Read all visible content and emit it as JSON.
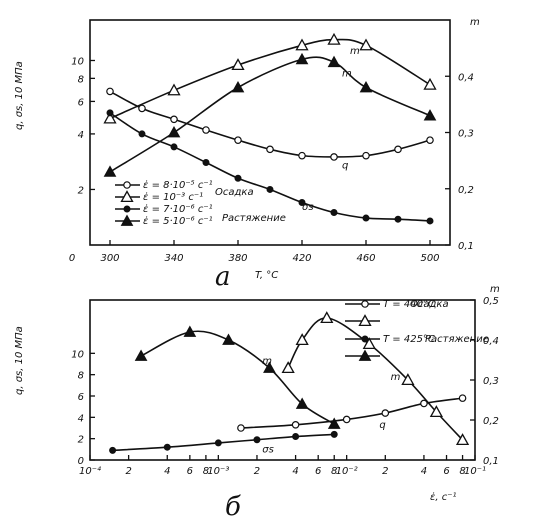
{
  "chart_data": [
    {
      "type": "line",
      "panel_label": "а",
      "xlabel": "T, °C",
      "ylabel": "q, σs, 10 МПа",
      "y2label": "m",
      "xlim": [
        300,
        500
      ],
      "ylim": [
        1,
        15
      ],
      "y_scale": "log",
      "y2lim": [
        0.1,
        0.5
      ],
      "x_ticks": [
        "0",
        "300",
        "340",
        "380",
        "420",
        "460",
        "500"
      ],
      "y_ticks": [
        "2",
        "4",
        "6",
        "8",
        "10"
      ],
      "y2_ticks": [
        "0,1",
        "0,2",
        "0,3",
        "0,4"
      ],
      "legend": [
        "ε̇ = 8·10⁻⁵ с⁻¹",
        "ε̇ = 10⁻³ с⁻¹",
        "ε̇ = 7·10⁻⁶ с⁻¹",
        "ε̇ = 5·10⁻⁶ с⁻¹"
      ],
      "legend_notes": [
        "Осадка",
        "Растяжение"
      ],
      "curve_labels": [
        "m",
        "m",
        "q",
        "σs"
      ],
      "series": [
        {
          "name": "ε̇ = 8·10⁻⁵ с⁻¹",
          "marker": "open-circle",
          "axis": "left",
          "x": [
            300,
            320,
            340,
            360,
            380,
            400,
            420,
            440,
            460,
            480,
            500
          ],
          "y": [
            6.8,
            5.5,
            4.8,
            4.2,
            3.7,
            3.3,
            3.05,
            3.0,
            3.05,
            3.3,
            3.7
          ]
        },
        {
          "name": "ε̇ = 10⁻³ с⁻¹",
          "marker": "open-triangle",
          "axis": "right",
          "x": [
            300,
            340,
            380,
            420,
            440,
            460,
            500
          ],
          "y": [
            0.325,
            0.375,
            0.42,
            0.455,
            0.465,
            0.455,
            0.385
          ]
        },
        {
          "name": "ε̇ = 7·10⁻⁶ с⁻¹",
          "marker": "filled-circle",
          "axis": "left",
          "x": [
            300,
            320,
            340,
            360,
            380,
            400,
            420,
            440,
            460,
            480,
            500
          ],
          "y": [
            5.2,
            4.0,
            3.4,
            2.8,
            2.3,
            2.0,
            1.7,
            1.5,
            1.4,
            1.38,
            1.35
          ]
        },
        {
          "name": "ε̇ = 5·10⁻⁶ с⁻¹",
          "marker": "filled-triangle",
          "axis": "right",
          "x": [
            300,
            340,
            380,
            420,
            440,
            460,
            500
          ],
          "y": [
            0.23,
            0.3,
            0.38,
            0.43,
            0.425,
            0.38,
            0.33
          ]
        }
      ]
    },
    {
      "type": "line",
      "panel_label": "б",
      "xlabel": "ε̇, с⁻¹",
      "ylabel": "q, σs, 10 МПа",
      "y2label": "m",
      "x_scale": "log",
      "xlim": [
        0.0001,
        0.1
      ],
      "ylim": [
        0,
        15
      ],
      "y2lim": [
        0.1,
        0.5
      ],
      "x_ticks": [
        "10⁻⁴",
        "2",
        "4",
        "6",
        "8",
        "10⁻³",
        "2",
        "4",
        "6",
        "8",
        "10⁻²",
        "2",
        "4",
        "6",
        "8",
        "10⁻¹"
      ],
      "y_ticks": [
        "0",
        "2",
        "4",
        "6",
        "8",
        "10"
      ],
      "y2_ticks": [
        "0,1",
        "0,2",
        "0,3",
        "0,4",
        "0,5"
      ],
      "legend": [
        "T = 440°C",
        "T = 425°C"
      ],
      "legend_notes": [
        "Осадка",
        "Растяжение"
      ],
      "curve_labels": [
        "m",
        "q",
        "m",
        "σs"
      ],
      "series": [
        {
          "name": "T = 440°C",
          "marker": "open-circle",
          "axis": "left",
          "x": [
            0.0015,
            0.004,
            0.01,
            0.02,
            0.04,
            0.08
          ],
          "y": [
            3.0,
            3.3,
            3.8,
            4.4,
            5.3,
            5.8
          ]
        },
        {
          "name": "T = 440°C (m)",
          "marker": "open-triangle",
          "axis": "right",
          "x": [
            0.0035,
            0.0045,
            0.007,
            0.015,
            0.03,
            0.05,
            0.08
          ],
          "y": [
            0.33,
            0.4,
            0.455,
            0.39,
            0.3,
            0.22,
            0.15
          ]
        },
        {
          "name": "T = 425°C",
          "marker": "filled-circle",
          "axis": "left",
          "x": [
            0.00015,
            0.0004,
            0.001,
            0.002,
            0.004,
            0.008
          ],
          "y": [
            0.9,
            1.2,
            1.6,
            1.9,
            2.2,
            2.4
          ]
        },
        {
          "name": "T = 425°C (m)",
          "marker": "filled-triangle",
          "axis": "right",
          "x": [
            0.00025,
            0.0006,
            0.0012,
            0.0025,
            0.0045,
            0.008
          ],
          "y": [
            0.36,
            0.42,
            0.4,
            0.33,
            0.24,
            0.19
          ]
        }
      ]
    }
  ]
}
